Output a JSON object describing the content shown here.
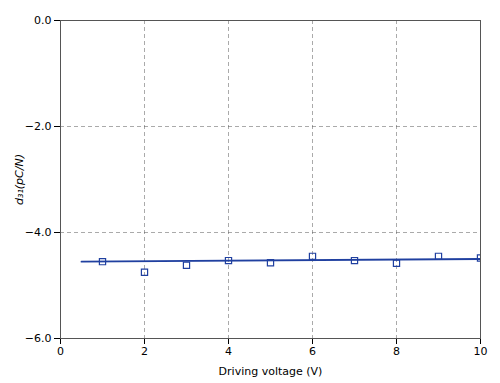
{
  "chart_data": {
    "type": "scatter",
    "xlabel": "Driving voltage (V)",
    "ylabel": "d₃₁(pC/N)",
    "xlim": [
      0,
      10
    ],
    "ylim": [
      -6,
      0
    ],
    "xticks": [
      0,
      2,
      4,
      6,
      8,
      10
    ],
    "yticks": [
      0,
      -2,
      -4,
      -6
    ],
    "grid": true,
    "series": [
      {
        "type": "scatter",
        "marker": "square",
        "color": "#2040a0",
        "x": [
          1,
          2,
          3,
          4,
          5,
          6,
          7,
          8,
          9,
          10
        ],
        "values": [
          -4.55,
          -4.75,
          -4.62,
          -4.53,
          -4.57,
          -4.45,
          -4.53,
          -4.58,
          -4.45,
          -4.48
        ]
      },
      {
        "type": "line",
        "color": "#2040a0",
        "x": [
          0.5,
          10.0
        ],
        "values": [
          -4.55,
          -4.5
        ]
      }
    ]
  }
}
